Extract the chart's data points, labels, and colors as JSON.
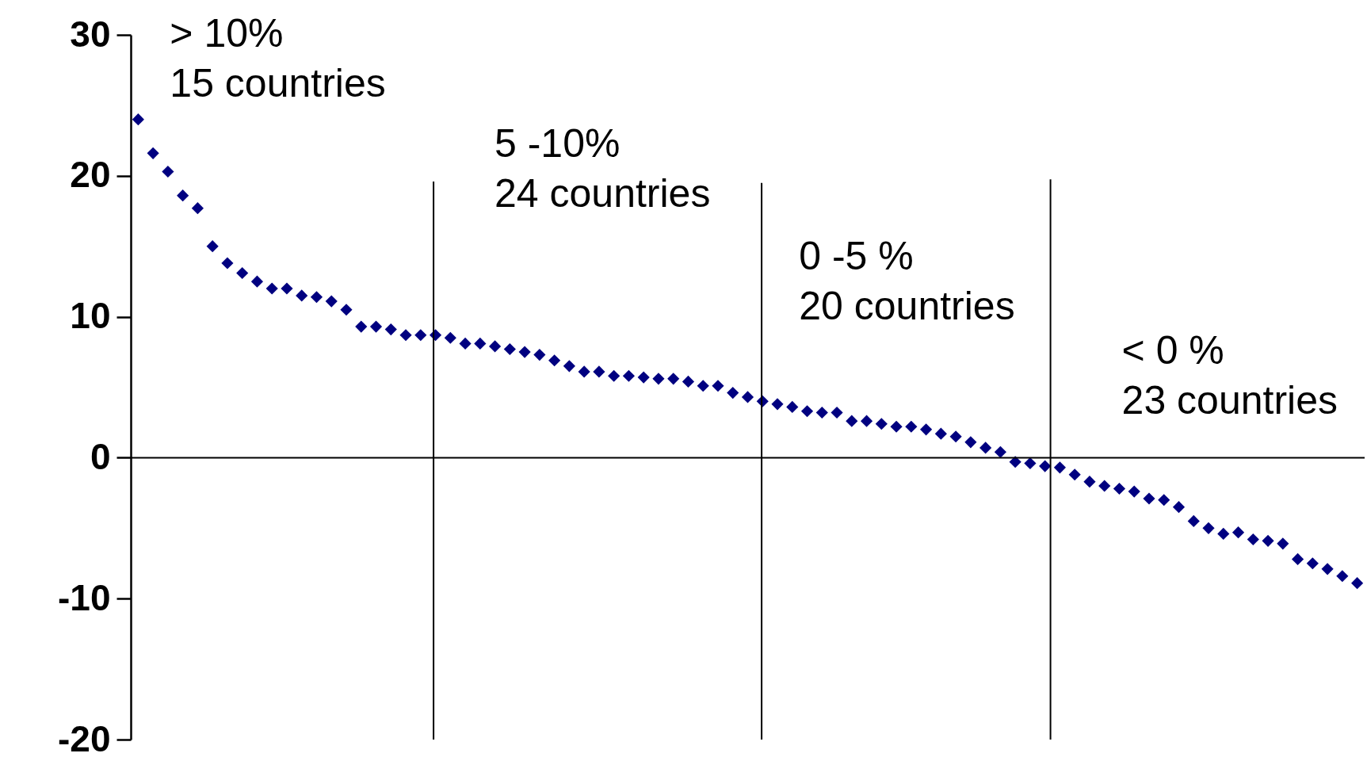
{
  "chart_data": {
    "type": "scatter",
    "marker": "diamond",
    "tick_labels": "y",
    "grid": false,
    "categories": [
      null,
      null,
      null,
      null,
      null,
      null,
      null,
      null,
      null,
      null,
      null,
      null,
      null,
      null,
      null,
      null,
      null,
      null,
      null,
      null,
      null,
      null,
      null,
      null,
      null,
      null,
      null,
      null,
      null,
      null,
      null,
      null,
      null,
      null,
      null,
      null,
      null,
      null,
      null,
      null,
      null,
      null,
      null,
      null,
      null,
      null,
      null,
      null,
      null,
      null,
      null,
      null,
      null,
      null,
      null,
      null,
      null,
      null,
      null,
      null,
      null,
      null,
      null,
      null,
      null,
      null,
      null,
      null,
      null,
      null,
      null,
      null,
      null,
      null,
      null,
      null,
      null,
      null,
      null,
      null,
      null,
      null,
      null
    ],
    "series": [
      {
        "color": "#000080",
        "values": [
          24,
          21.6,
          20.3,
          18.6,
          17.7,
          15,
          13.8,
          13.1,
          12.5,
          12,
          12,
          11.5,
          11.4,
          11.1,
          10.5,
          9.3,
          9.3,
          9.1,
          8.7,
          8.7,
          8.7,
          8.5,
          8.1,
          8.1,
          7.9,
          7.7,
          7.5,
          7.3,
          6.9,
          6.5,
          6.1,
          6.1,
          5.8,
          5.8,
          5.7,
          5.6,
          5.6,
          5.4,
          5.1,
          5.1,
          4.6,
          4.3,
          4,
          3.8,
          3.6,
          3.3,
          3.2,
          3.2,
          2.6,
          2.6,
          2.4,
          2.2,
          2.2,
          2,
          1.7,
          1.5,
          1.1,
          0.7,
          0.4,
          -0.3,
          -0.4,
          -0.6,
          -0.7,
          -1.2,
          -1.7,
          -2,
          -2.2,
          -2.4,
          -2.9,
          -3,
          -3.5,
          -4.5,
          -5,
          -5.4,
          -5.3,
          -5.8,
          -5.9,
          -6.1,
          -7.2,
          -7.5,
          -7.9,
          -8.4,
          -8.9
        ]
      }
    ],
    "ylim": [
      -20,
      30
    ],
    "yticks": [
      -20,
      -10,
      0,
      10,
      20,
      30
    ],
    "ref_lines": [
      {
        "axis": "y",
        "value": 0
      }
    ],
    "annotations": [
      "> 10%\n15 countries",
      "5 -10%\n24 countries",
      "0 -5 %\n20 countries",
      "< 0 %\n23 countries"
    ]
  }
}
